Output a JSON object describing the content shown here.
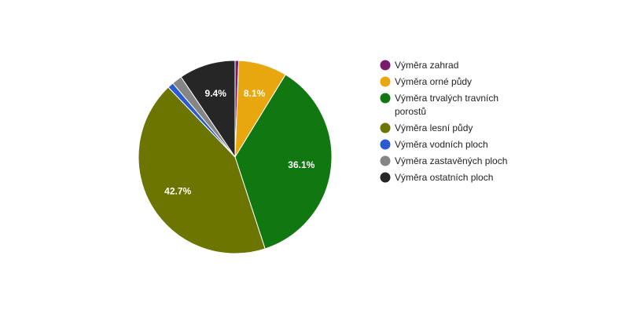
{
  "chart_data": {
    "type": "pie",
    "title": "",
    "series": [
      {
        "name": "",
        "slices": [
          {
            "label": "Výměra zahrad",
            "value": 0.6,
            "color": "#7b1b6e",
            "display": ""
          },
          {
            "label": "Výměra orné půdy",
            "value": 8.1,
            "color": "#e8a70f",
            "display": "8.1%"
          },
          {
            "label": "Výměra trvalých travních porostů",
            "value": 36.1,
            "color": "#117711",
            "display": "36.1%"
          },
          {
            "label": "Výměra lesní půdy",
            "value": 42.7,
            "color": "#6b7500",
            "display": "42.7%"
          },
          {
            "label": "Výměra vodních ploch",
            "value": 1.0,
            "color": "#2a5bd1",
            "display": ""
          },
          {
            "label": "Výměra zastavěných ploch",
            "value": 1.7,
            "color": "#858585",
            "display": ""
          },
          {
            "label": "Výměra ostatních ploch",
            "value": 9.4,
            "color": "#262626",
            "display": "9.4%"
          }
        ]
      }
    ],
    "legend": {
      "position": "right",
      "items": [
        {
          "lines": [
            "Výměra zahrad"
          ],
          "color": "#7b1b6e"
        },
        {
          "lines": [
            "Výměra orné půdy"
          ],
          "color": "#e8a70f"
        },
        {
          "lines": [
            "Výměra trvalých travních",
            "porostů"
          ],
          "color": "#117711"
        },
        {
          "lines": [
            "Výměra lesní půdy"
          ],
          "color": "#6b7500"
        },
        {
          "lines": [
            "Výměra vodních ploch"
          ],
          "color": "#2a5bd1"
        },
        {
          "lines": [
            "Výměra zastavěných ploch"
          ],
          "color": "#858585"
        },
        {
          "lines": [
            "Výměra ostatních ploch"
          ],
          "color": "#262626"
        }
      ]
    }
  }
}
